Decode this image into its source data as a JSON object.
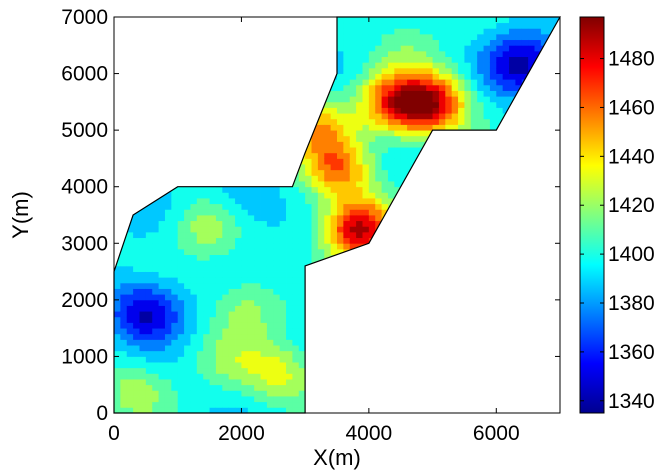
{
  "chart_data": {
    "type": "heatmap",
    "xlabel": "X(m)",
    "ylabel": "Y(m)",
    "xlim": [
      0,
      7000
    ],
    "ylim": [
      0,
      7000
    ],
    "x_ticks": [
      "0",
      "2000",
      "4000",
      "6000"
    ],
    "y_ticks": [
      "0",
      "1000",
      "2000",
      "3000",
      "4000",
      "5000",
      "6000",
      "7000"
    ],
    "colorbar": {
      "min": 1335,
      "max": 1497,
      "ticks": [
        "1340",
        "1360",
        "1380",
        "1400",
        "1420",
        "1440",
        "1460",
        "1480"
      ],
      "colormap": "jet"
    },
    "domain_outline": [
      [
        0,
        0
      ],
      [
        3000,
        0
      ],
      [
        3000,
        2600
      ],
      [
        4000,
        3000
      ],
      [
        5000,
        5000
      ],
      [
        6000,
        5000
      ],
      [
        7000,
        7000
      ],
      [
        3500,
        7000
      ],
      [
        3500,
        6000
      ],
      [
        3000,
        4000
      ],
      [
        2500,
        4000
      ],
      [
        2500,
        3000
      ],
      [
        3000,
        3000
      ],
      [
        3000,
        3900
      ],
      [
        2500,
        4000
      ],
      [
        1000,
        4000
      ],
      [
        500,
        3500
      ],
      [
        0,
        2500
      ]
    ],
    "hotspots": [
      {
        "x": 3850,
        "y": 3250,
        "value": 1490
      },
      {
        "x": 5000,
        "y": 5450,
        "value": 1480
      },
      {
        "x": 4400,
        "y": 5500,
        "value": 1465
      },
      {
        "x": 3500,
        "y": 4300,
        "value": 1455
      },
      {
        "x": 3200,
        "y": 5100,
        "value": 1440
      },
      {
        "x": 1500,
        "y": 3300,
        "value": 1425
      },
      {
        "x": 2100,
        "y": 1900,
        "value": 1420
      },
      {
        "x": 2600,
        "y": 700,
        "value": 1430
      },
      {
        "x": 1800,
        "y": 900,
        "value": 1415
      },
      {
        "x": 300,
        "y": 400,
        "value": 1420
      },
      {
        "x": 4600,
        "y": 6600,
        "value": 1410
      }
    ],
    "lowspots": [
      {
        "x": 500,
        "y": 1800,
        "value": 1345
      },
      {
        "x": 6400,
        "y": 6200,
        "value": 1345
      },
      {
        "x": 2000,
        "y": 3700,
        "value": 1375
      }
    ]
  }
}
